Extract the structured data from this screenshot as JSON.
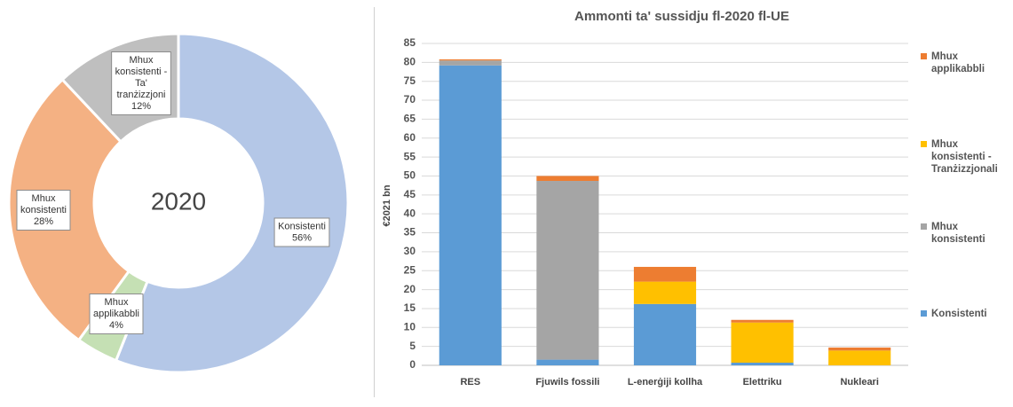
{
  "chart_data": [
    {
      "type": "pie",
      "variant": "donut",
      "center_label": "2020",
      "slices": [
        {
          "name": "Konsistenti",
          "value": 56,
          "label_lines": [
            "Konsistenti",
            "56%"
          ],
          "color": "#b4c7e7"
        },
        {
          "name": "Mhux applikabbli",
          "value": 4,
          "label_lines": [
            "Mhux",
            "applikabbli",
            "4%"
          ],
          "color": "#c5e0b4"
        },
        {
          "name": "Mhux konsistenti",
          "value": 28,
          "label_lines": [
            "Mhux",
            "konsistenti",
            "28%"
          ],
          "color": "#f4b183"
        },
        {
          "name": "Mhux konsistenti - Ta' tranżizzjoni",
          "value": 12,
          "label_lines": [
            "Mhux",
            "konsistenti -",
            "Ta'",
            "tranżizzjoni",
            "12%"
          ],
          "color": "#bfbfbf"
        }
      ]
    },
    {
      "type": "bar",
      "stacked": true,
      "title": "Ammonti ta' sussidju fl-2020 fl-UE",
      "ylabel": "€2021 bn",
      "xlabel": "",
      "ylim": [
        0,
        85
      ],
      "yticks": [
        0,
        5,
        10,
        15,
        20,
        25,
        30,
        35,
        40,
        45,
        50,
        55,
        60,
        65,
        70,
        75,
        80,
        85
      ],
      "grid": true,
      "legend_position": "right",
      "categories": [
        "RES",
        "Fjuwils fossili",
        "L-enerġiji kollha",
        "Elettriku",
        "Nukleari"
      ],
      "series": [
        {
          "name": "Konsistenti",
          "color": "#5b9bd5",
          "values": [
            79.2,
            1.5,
            16.2,
            0.7,
            0
          ]
        },
        {
          "name": "Mhux konsistenti",
          "color": "#a5a5a5",
          "values": [
            1.3,
            47.2,
            0,
            0,
            0
          ]
        },
        {
          "name": "Mhux konsistenti - Tranżizzjonali",
          "color": "#ffc000",
          "values": [
            0,
            0,
            5.9,
            10.6,
            3.9
          ]
        },
        {
          "name": "Mhux applikabbli",
          "color": "#ed7d31",
          "values": [
            0.3,
            1.3,
            3.9,
            0.7,
            0.8
          ]
        }
      ],
      "legend_order": [
        "Mhux applikabbli",
        "Mhux konsistenti - Tranżizzjonali",
        "Mhux konsistenti",
        "Konsistenti"
      ],
      "legend_lines": {
        "Mhux applikabbli": [
          "Mhux",
          "applikabbli"
        ],
        "Mhux konsistenti - Tranżizzjonali": [
          "Mhux",
          "konsistenti -",
          "Tranżizzjonali"
        ],
        "Mhux konsistenti": [
          "Mhux",
          "konsistenti"
        ],
        "Konsistenti": [
          "Konsistenti"
        ]
      }
    }
  ]
}
